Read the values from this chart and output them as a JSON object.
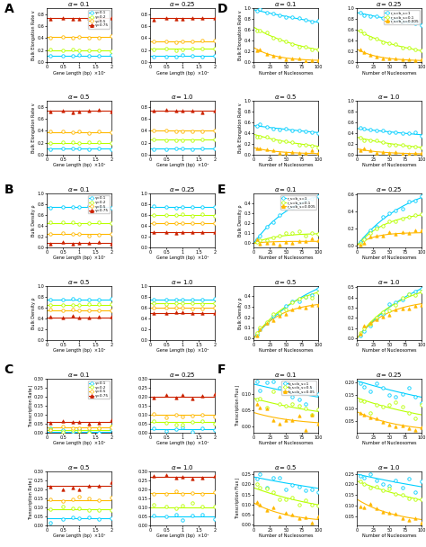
{
  "colors_left": [
    "#00cfff",
    "#b8ff00",
    "#ffb800",
    "#cc2200"
  ],
  "colors_right_DEF": [
    "#00cfff",
    "#b8ff00",
    "#ffb800"
  ],
  "legend_left_labels": [
    "γ=0.1",
    "γ=0.2",
    "γ=0.5",
    "γ=0.75"
  ],
  "legend_D_labels": [
    "r_s=b_s=1",
    "r_s=b_s=0.1",
    "r_s=b_s=0.005"
  ],
  "legend_E_labels": [
    "r_s=b_s=1",
    "r_s=b_s=0.1",
    "r_s=b_s=0.005"
  ],
  "legend_F_labels": [
    "b_s=b_s=1",
    "b_s=b_s=0.5",
    "b_s=b_s=0.05"
  ],
  "alpha_vals": [
    0.1,
    0.25,
    0.5,
    1.0
  ],
  "xlabel_left": "Gene Length (bp)  ×10⁴",
  "xlabel_right": "Number of Nucleosomes",
  "ylabel_A": "Bulk Elongation Rate v",
  "ylabel_B": "Bulk Density ρ",
  "ylabel_C": "Transcription Rate J",
  "ylabel_D": "Bulk Elongation Rate v",
  "ylabel_E": "Bulk Density ρ",
  "ylabel_F": "Transcription Flux J",
  "A_bases": {
    "0.1": [
      0.1,
      0.2,
      0.42,
      0.73
    ],
    "0.25": [
      0.1,
      0.22,
      0.35,
      0.73
    ],
    "0.5": [
      0.1,
      0.2,
      0.38,
      0.73
    ],
    "1.0": [
      0.1,
      0.25,
      0.4,
      0.73
    ]
  },
  "A_ylim": [
    0,
    0.9
  ],
  "B_bases": {
    "0.1": [
      0.75,
      0.45,
      0.25,
      0.08
    ],
    "0.25": [
      0.75,
      0.6,
      0.45,
      0.28
    ],
    "0.5": [
      0.75,
      0.65,
      0.55,
      0.42
    ],
    "1.0": [
      0.75,
      0.68,
      0.6,
      0.5
    ]
  },
  "B_ylim": [
    0,
    1.0
  ],
  "C_bases": {
    "0.1": [
      0.005,
      0.015,
      0.03,
      0.06
    ],
    "0.25": [
      0.02,
      0.06,
      0.1,
      0.2
    ],
    "0.5": [
      0.04,
      0.09,
      0.14,
      0.22
    ],
    "1.0": [
      0.05,
      0.1,
      0.18,
      0.27
    ]
  },
  "C_ylim": [
    0,
    0.3
  ],
  "D_bases": {
    "0.1": [
      0.9,
      0.6,
      0.25
    ],
    "0.25": [
      0.85,
      0.55,
      0.22
    ],
    "0.5": [
      0.5,
      0.35,
      0.12
    ],
    "1.0": [
      0.45,
      0.3,
      0.1
    ]
  },
  "D_decays": {
    "0.1": [
      0.003,
      0.012,
      0.03
    ],
    "0.25": [
      0.003,
      0.012,
      0.03
    ],
    "0.5": [
      0.003,
      0.01,
      0.025
    ],
    "1.0": [
      0.003,
      0.01,
      0.025
    ]
  },
  "D_ylim": [
    0,
    1.0
  ],
  "E_bases": {
    "0.1": [
      0.6,
      0.1,
      0.02
    ],
    "0.25": [
      0.8,
      0.4,
      0.15
    ],
    "0.5": [
      0.75,
      0.55,
      0.35
    ],
    "1.0": [
      0.77,
      0.58,
      0.38
    ]
  },
  "E_grows": {
    "0.1": [
      0.015,
      0.03,
      0.05
    ],
    "0.25": [
      0.012,
      0.022,
      0.04
    ],
    "0.5": [
      0.01,
      0.016,
      0.025
    ],
    "1.0": [
      0.01,
      0.015,
      0.022
    ]
  },
  "F_bases": {
    "0.1": [
      0.12,
      0.08,
      0.04
    ],
    "0.25": [
      0.19,
      0.13,
      0.08
    ],
    "0.5": [
      0.22,
      0.17,
      0.1
    ],
    "1.0": [
      0.23,
      0.2,
      0.12
    ]
  },
  "F_decays": {
    "0.1": [
      0.004,
      0.007,
      0.015
    ],
    "0.25": [
      0.004,
      0.007,
      0.015
    ],
    "0.5": [
      0.003,
      0.007,
      0.018
    ],
    "1.0": [
      0.003,
      0.006,
      0.016
    ]
  }
}
